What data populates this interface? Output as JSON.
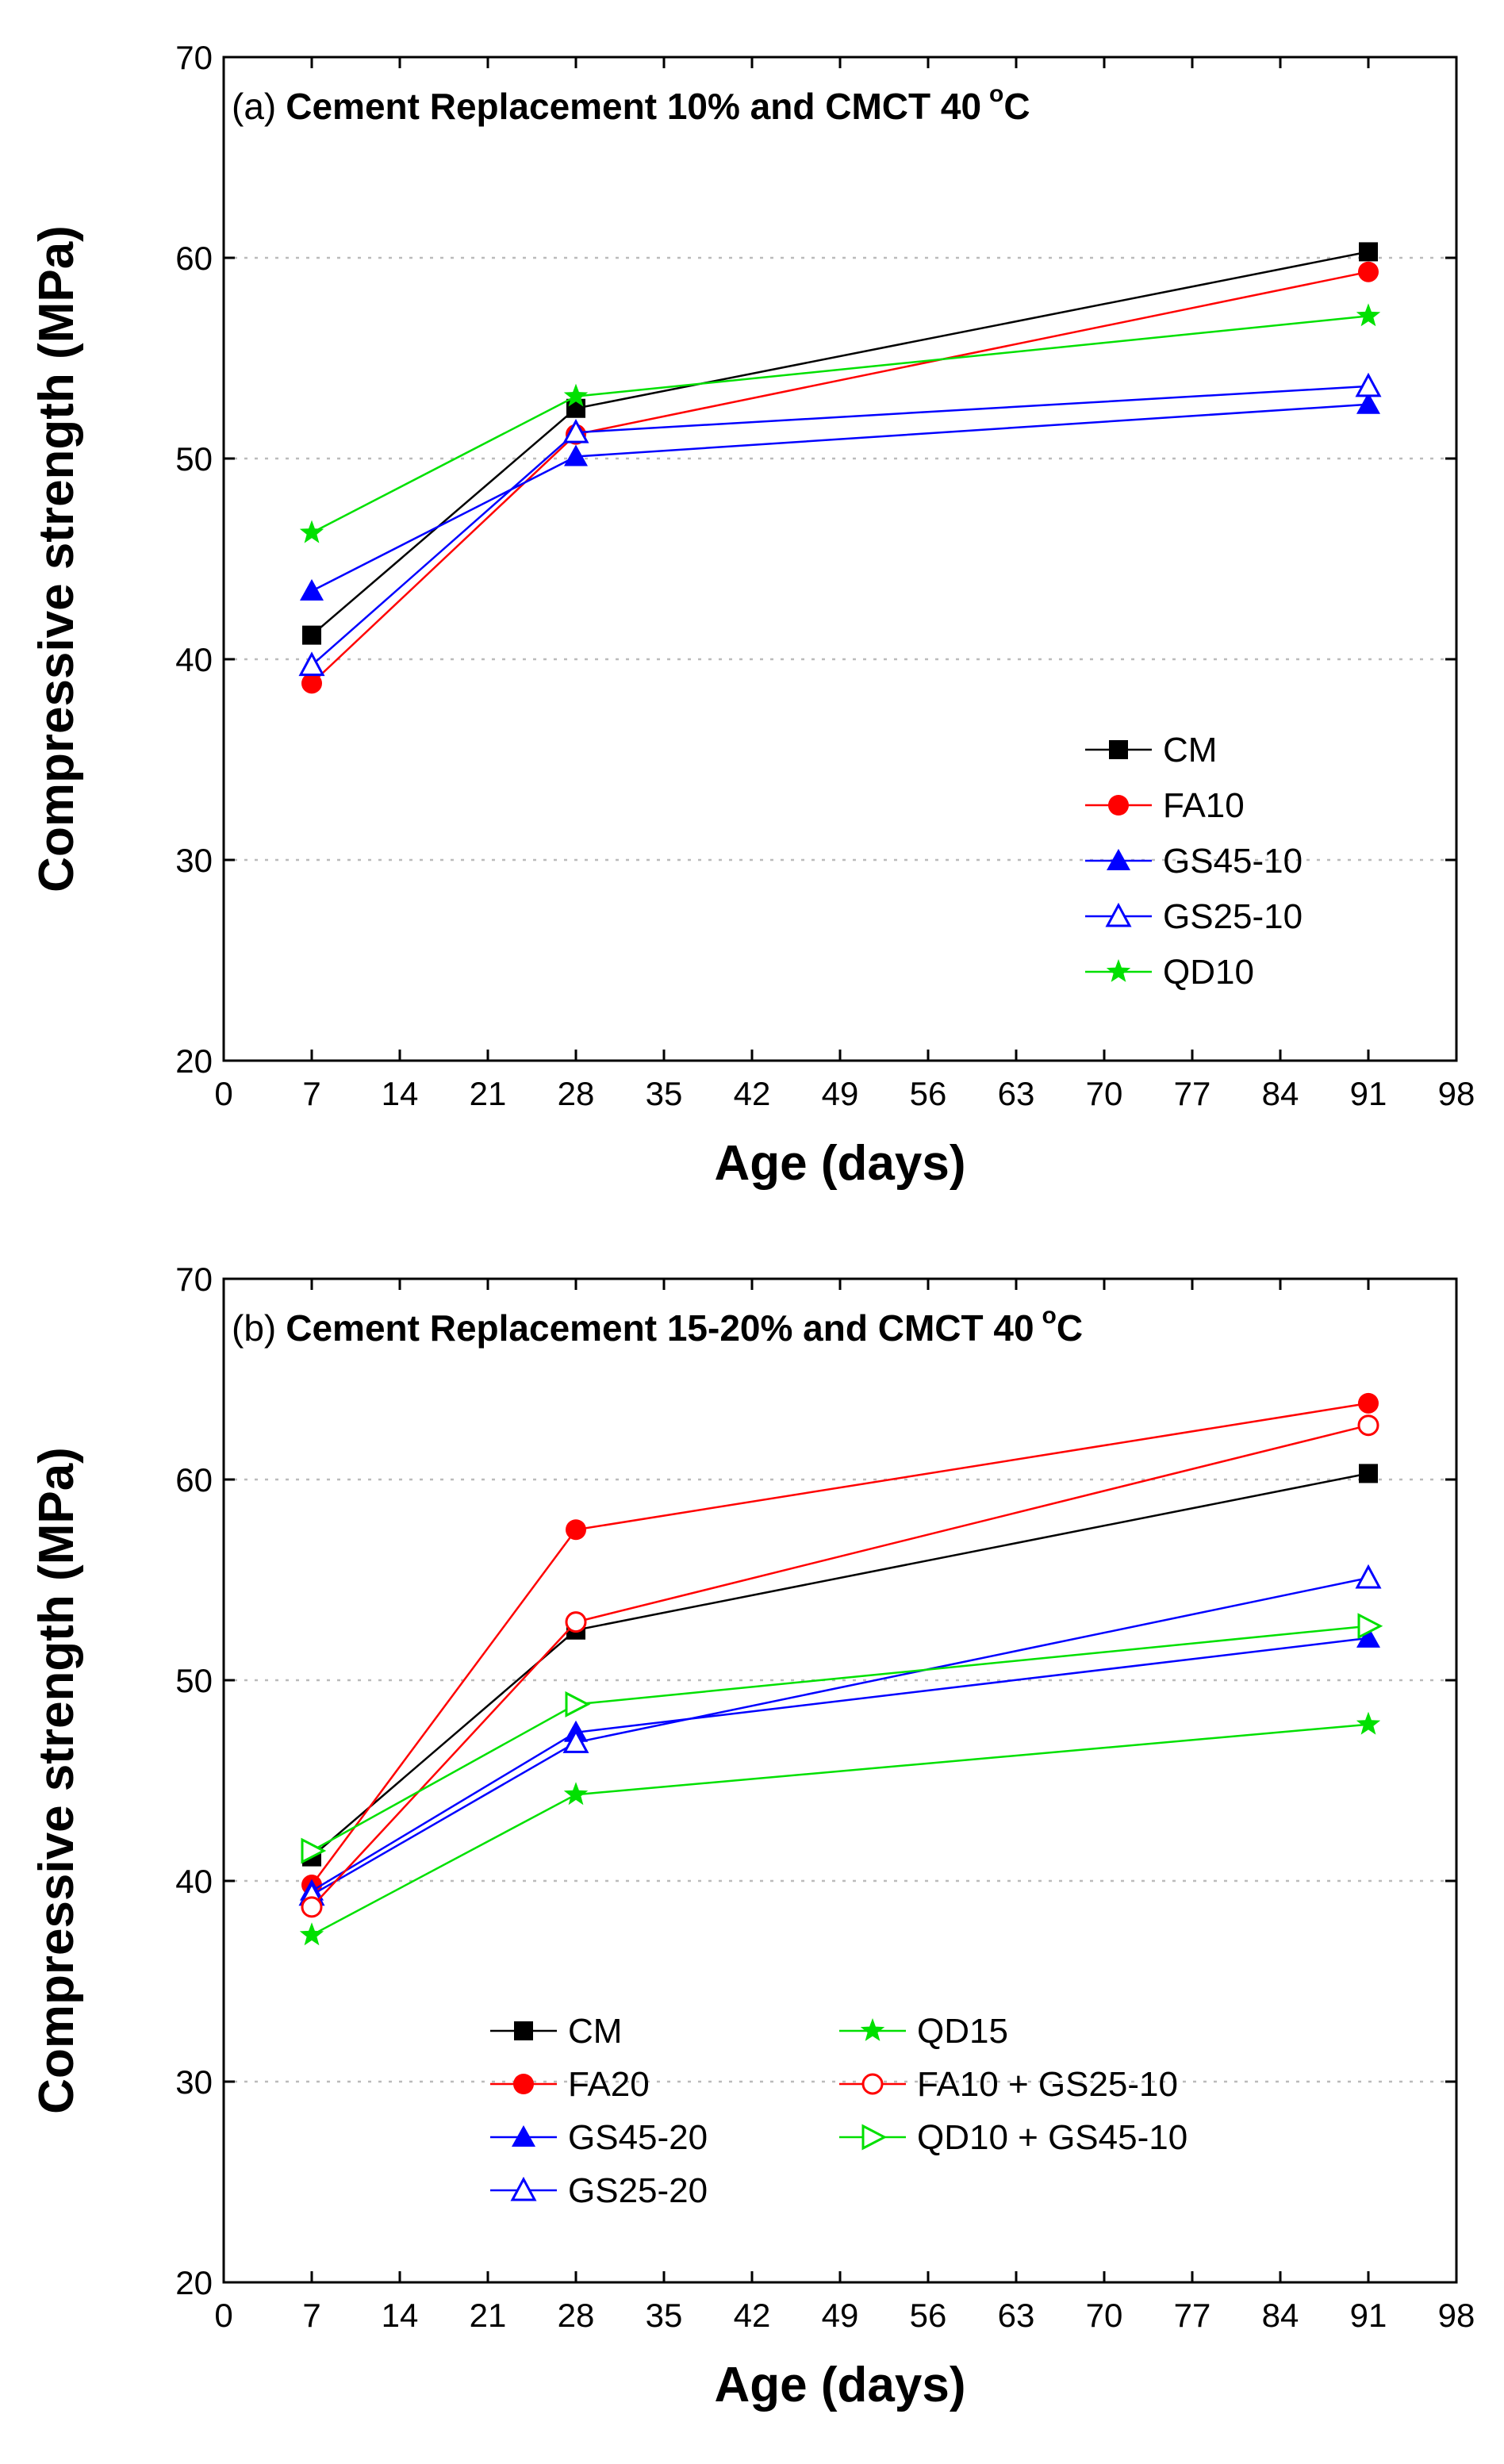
{
  "chart_data": [
    {
      "type": "line",
      "panel_label": "(a)",
      "title": "Cement Replacement 10% and CMCT 40",
      "title_degree": "o",
      "title_unit": "C",
      "xlabel": "Age (days)",
      "ylabel": "Compressive strength (MPa)",
      "xlim": [
        0,
        98
      ],
      "ylim": [
        20,
        70
      ],
      "xticks": [
        0,
        7,
        14,
        21,
        28,
        35,
        42,
        49,
        56,
        63,
        70,
        77,
        84,
        91,
        98
      ],
      "yticks": [
        20,
        30,
        40,
        50,
        60,
        70
      ],
      "x": [
        7,
        28,
        91
      ],
      "legend_position": "lower-right",
      "legend_layout": "one-column",
      "series": [
        {
          "name": "CM",
          "values": [
            41.2,
            52.5,
            60.3
          ],
          "color": "#000000",
          "marker": "square-filled"
        },
        {
          "name": "FA10",
          "values": [
            38.8,
            51.2,
            59.3
          ],
          "color": "#ff0000",
          "marker": "circle-filled"
        },
        {
          "name": "GS45-10",
          "values": [
            43.4,
            50.1,
            52.7
          ],
          "color": "#0000ff",
          "marker": "triangle-filled"
        },
        {
          "name": "GS25-10",
          "values": [
            39.7,
            51.3,
            53.6
          ],
          "color": "#0000ff",
          "marker": "triangle-open"
        },
        {
          "name": "QD10",
          "values": [
            46.3,
            53.1,
            57.1
          ],
          "color": "#00e000",
          "marker": "star-filled"
        }
      ]
    },
    {
      "type": "line",
      "panel_label": "(b)",
      "title": "Cement Replacement 15-20% and CMCT 40",
      "title_degree": "o",
      "title_unit": "C",
      "xlabel": "Age (days)",
      "ylabel": "Compressive strength (MPa)",
      "xlim": [
        0,
        98
      ],
      "ylim": [
        20,
        70
      ],
      "xticks": [
        0,
        7,
        14,
        21,
        28,
        35,
        42,
        49,
        56,
        63,
        70,
        77,
        84,
        91,
        98
      ],
      "yticks": [
        20,
        30,
        40,
        50,
        60,
        70
      ],
      "x": [
        7,
        28,
        91
      ],
      "legend_position": "bottom",
      "legend_layout": "two-column",
      "series": [
        {
          "name": "CM",
          "values": [
            41.2,
            52.5,
            60.3
          ],
          "color": "#000000",
          "marker": "square-filled"
        },
        {
          "name": "FA20",
          "values": [
            39.8,
            57.5,
            63.8
          ],
          "color": "#ff0000",
          "marker": "circle-filled"
        },
        {
          "name": "GS45-20",
          "values": [
            39.5,
            47.4,
            52.1
          ],
          "color": "#0000ff",
          "marker": "triangle-filled"
        },
        {
          "name": "GS25-20",
          "values": [
            39.3,
            46.9,
            55.1
          ],
          "color": "#0000ff",
          "marker": "triangle-open"
        },
        {
          "name": "QD15",
          "values": [
            37.3,
            44.3,
            47.8
          ],
          "color": "#00e000",
          "marker": "star-filled"
        },
        {
          "name": "FA10 + GS25-10",
          "values": [
            38.7,
            52.9,
            62.7
          ],
          "color": "#ff0000",
          "marker": "circle-open"
        },
        {
          "name": "QD10 + GS45-10",
          "values": [
            41.5,
            48.8,
            52.7
          ],
          "color": "#00e000",
          "marker": "triangle-right-open"
        }
      ]
    }
  ]
}
